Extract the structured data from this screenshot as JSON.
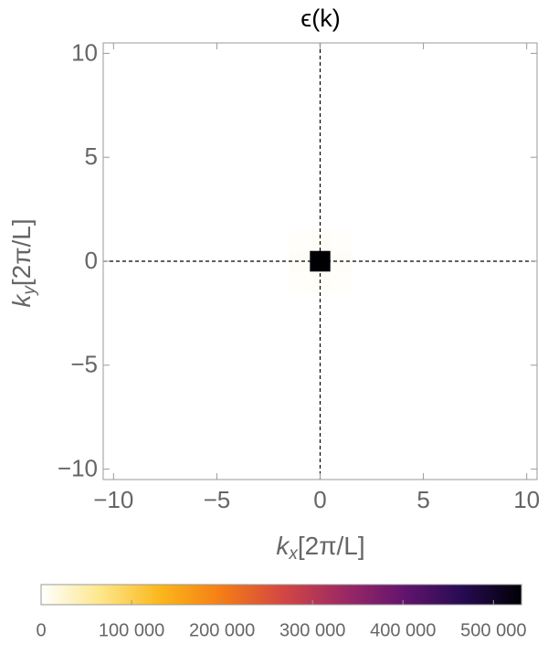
{
  "chart_data": {
    "type": "heatmap",
    "title": "ϵ(k)",
    "x_label": [
      "k",
      "x",
      "[2π/L]"
    ],
    "y_label": [
      "k",
      "y",
      "[2π/L]"
    ],
    "xlim": [
      -10.5,
      10.5
    ],
    "ylim": [
      -10.5,
      10.5
    ],
    "xticks": [
      {
        "value": -10,
        "label": "−10"
      },
      {
        "value": -5,
        "label": "−5"
      },
      0,
      5,
      10
    ],
    "yticks": [
      {
        "value": -10,
        "label": "−10"
      },
      {
        "value": -5,
        "label": "−5"
      },
      0,
      5,
      10
    ],
    "reference_lines": {
      "x": [
        0
      ],
      "y": [
        0
      ]
    },
    "cells": [
      {
        "x": 0,
        "y": 0,
        "value": 531000
      },
      {
        "x": 1,
        "y": 0,
        "value": 4000
      },
      {
        "x": -1,
        "y": 0,
        "value": 4000
      },
      {
        "x": 0,
        "y": 1,
        "value": 4000
      },
      {
        "x": 0,
        "y": -1,
        "value": 4000
      },
      {
        "x": 1,
        "y": 1,
        "value": 2000
      },
      {
        "x": -1,
        "y": 1,
        "value": 2000
      },
      {
        "x": 1,
        "y": -1,
        "value": 2000
      },
      {
        "x": -1,
        "y": -1,
        "value": 2000
      }
    ],
    "colorbar": {
      "lim": [
        0,
        531000
      ],
      "ticks": [
        0,
        {
          "value": 100000,
          "label": "100 000"
        },
        {
          "value": 200000,
          "label": "200 000"
        },
        {
          "value": 300000,
          "label": "300 000"
        },
        {
          "value": 400000,
          "label": "400 000"
        },
        {
          "value": 500000,
          "label": "500 000"
        }
      ],
      "colorscale": [
        "#ffffff",
        "#fde68a",
        "#fbb61a",
        "#f57d15",
        "#d44842",
        "#9f2a63",
        "#65156e",
        "#280b53",
        "#000004"
      ]
    }
  }
}
